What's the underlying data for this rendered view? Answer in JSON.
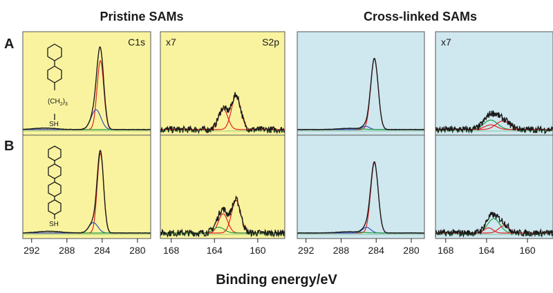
{
  "figure": {
    "column_titles": [
      "Pristine SAMs",
      "Cross-linked SAMs"
    ],
    "row_labels": [
      "A",
      "B"
    ],
    "xlabel": "Binding energy/eV",
    "molecule_labels": {
      "chain": "(CH",
      "sub2": "2",
      "close": ")",
      "sub3": "3",
      "thiol": "SH"
    }
  },
  "chart_data": [
    {
      "type": "line",
      "id": "pristine-C1s",
      "group": "Pristine SAMs",
      "annotations": [
        "C1s"
      ],
      "xticks": [
        292,
        288,
        284,
        280
      ],
      "xlim": [
        293,
        278.5
      ],
      "background": "#f9f39f",
      "rows": [
        {
          "row": "A",
          "envelope_peak_norm": 1.0,
          "components": [
            {
              "color": "#e02020",
              "center": 284.2,
              "fwhm": 0.9,
              "amp_norm": 0.9
            },
            {
              "color": "#3050c0",
              "center": 284.7,
              "fwhm": 1.3,
              "amp_norm": 0.26
            },
            {
              "color": "#20a040",
              "center": 290.5,
              "fwhm": 3.0,
              "amp_norm": 0.02
            }
          ]
        },
        {
          "row": "B",
          "envelope_peak_norm": 1.0,
          "components": [
            {
              "color": "#e02020",
              "center": 284.2,
              "fwhm": 0.85,
              "amp_norm": 0.92
            },
            {
              "color": "#3050c0",
              "center": 285.0,
              "fwhm": 1.2,
              "amp_norm": 0.12
            },
            {
              "color": "#20a040",
              "center": 290.0,
              "fwhm": 3.0,
              "amp_norm": 0.02
            }
          ]
        }
      ]
    },
    {
      "type": "line",
      "id": "pristine-S2p",
      "group": "Pristine SAMs",
      "annotations": [
        "x7",
        "S2p"
      ],
      "xticks": [
        168,
        164,
        160
      ],
      "xlim": [
        169,
        157.5
      ],
      "background": "#f9f39f",
      "rows": [
        {
          "row": "A",
          "envelope_peak_norm": 0.42,
          "components": [
            {
              "color": "#e02020",
              "center": 163.2,
              "fwhm": 1.0,
              "amp_norm": 0.22
            },
            {
              "color": "#e02020",
              "center": 162.0,
              "fwhm": 1.0,
              "amp_norm": 0.36
            }
          ]
        },
        {
          "row": "B",
          "envelope_peak_norm": 0.4,
          "components": [
            {
              "color": "#e02020",
              "center": 163.2,
              "fwhm": 1.0,
              "amp_norm": 0.2
            },
            {
              "color": "#e02020",
              "center": 162.0,
              "fwhm": 1.0,
              "amp_norm": 0.34
            },
            {
              "color": "#20a040",
              "center": 163.6,
              "fwhm": 1.2,
              "amp_norm": 0.06
            }
          ]
        }
      ]
    },
    {
      "type": "line",
      "id": "crosslinked-C1s",
      "group": "Cross-linked SAMs",
      "annotations": [],
      "xticks": [
        292,
        288,
        284,
        280
      ],
      "xlim": [
        293,
        278.5
      ],
      "background": "#cfe7ee",
      "rows": [
        {
          "row": "A",
          "envelope_peak_norm": 0.86,
          "components": [
            {
              "color": "#e02020",
              "center": 284.2,
              "fwhm": 1.0,
              "amp_norm": 0.85
            },
            {
              "color": "#3050c0",
              "center": 285.2,
              "fwhm": 1.0,
              "amp_norm": 0.04
            },
            {
              "color": "#20a040",
              "center": 287.0,
              "fwhm": 3.0,
              "amp_norm": 0.015
            }
          ]
        },
        {
          "row": "B",
          "envelope_peak_norm": 0.86,
          "components": [
            {
              "color": "#e02020",
              "center": 284.2,
              "fwhm": 1.0,
              "amp_norm": 0.85
            },
            {
              "color": "#3050c0",
              "center": 285.1,
              "fwhm": 1.1,
              "amp_norm": 0.07
            },
            {
              "color": "#20a040",
              "center": 287.0,
              "fwhm": 3.0,
              "amp_norm": 0.015
            }
          ]
        }
      ]
    },
    {
      "type": "line",
      "id": "crosslinked-S2p",
      "group": "Cross-linked SAMs",
      "annotations": [
        "x7"
      ],
      "xticks": [
        168,
        164,
        160
      ],
      "xlim": [
        169,
        157.5
      ],
      "background": "#cfe7ee",
      "rows": [
        {
          "row": "A",
          "envelope_peak_norm": 0.2,
          "components": [
            {
              "color": "#20a040",
              "center": 163.6,
              "fwhm": 1.6,
              "amp_norm": 0.1
            },
            {
              "color": "#e02020",
              "center": 162.4,
              "fwhm": 1.6,
              "amp_norm": 0.09
            },
            {
              "color": "#e02020",
              "center": 163.6,
              "fwhm": 1.4,
              "amp_norm": 0.05
            }
          ]
        },
        {
          "row": "B",
          "envelope_peak_norm": 0.22,
          "components": [
            {
              "color": "#20a040",
              "center": 163.3,
              "fwhm": 1.4,
              "amp_norm": 0.14
            },
            {
              "color": "#e02020",
              "center": 162.3,
              "fwhm": 1.2,
              "amp_norm": 0.07
            },
            {
              "color": "#e02020",
              "center": 163.8,
              "fwhm": 1.0,
              "amp_norm": 0.05
            }
          ]
        }
      ]
    }
  ]
}
